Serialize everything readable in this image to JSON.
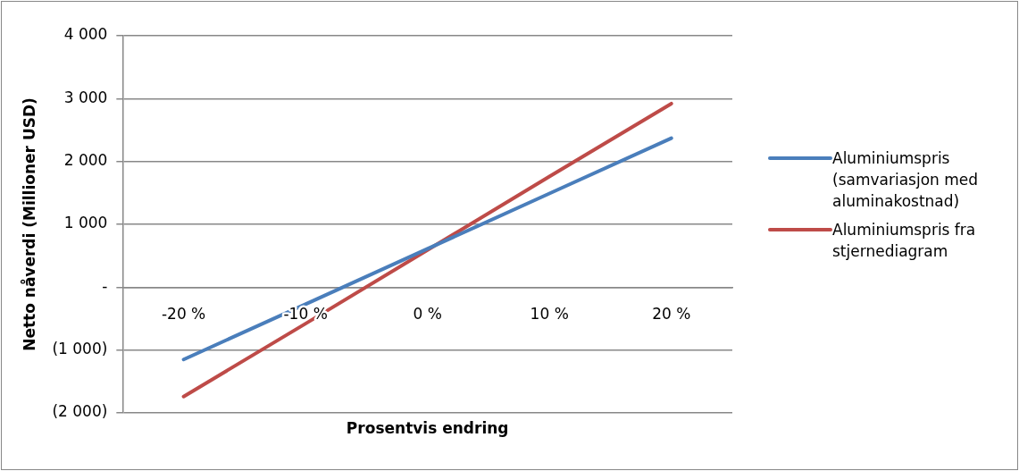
{
  "chart_data": {
    "type": "line",
    "xlabel": "Prosentvis endring",
    "ylabel": "Netto nåverdi (Millioner USD)",
    "categories": [
      "-20 %",
      "-10 %",
      "0 %",
      "10 %",
      "20 %"
    ],
    "series": [
      {
        "name": "Aluminiumspris (samvariasjon med aluminakostnad)",
        "color": "#4a7ebb",
        "values": [
          -1150,
          -270,
          610,
          1490,
          2370
        ]
      },
      {
        "name": "Aluminiumspris fra stjernediagram",
        "color": "#be4b48",
        "values": [
          -1740,
          -580,
          590,
          1760,
          2920
        ]
      }
    ],
    "ylim": [
      -2000,
      4000
    ],
    "yticks": [
      {
        "value": -2000,
        "label": "(2 000)"
      },
      {
        "value": -1000,
        "label": "(1 000)"
      },
      {
        "value": 0,
        "label": "-"
      },
      {
        "value": 1000,
        "label": "1 000"
      },
      {
        "value": 2000,
        "label": "2 000"
      },
      {
        "value": 3000,
        "label": "3 000"
      },
      {
        "value": 4000,
        "label": "4 000"
      }
    ],
    "grid": "y",
    "legend": "right",
    "marker": "none",
    "line_style": "solid"
  }
}
